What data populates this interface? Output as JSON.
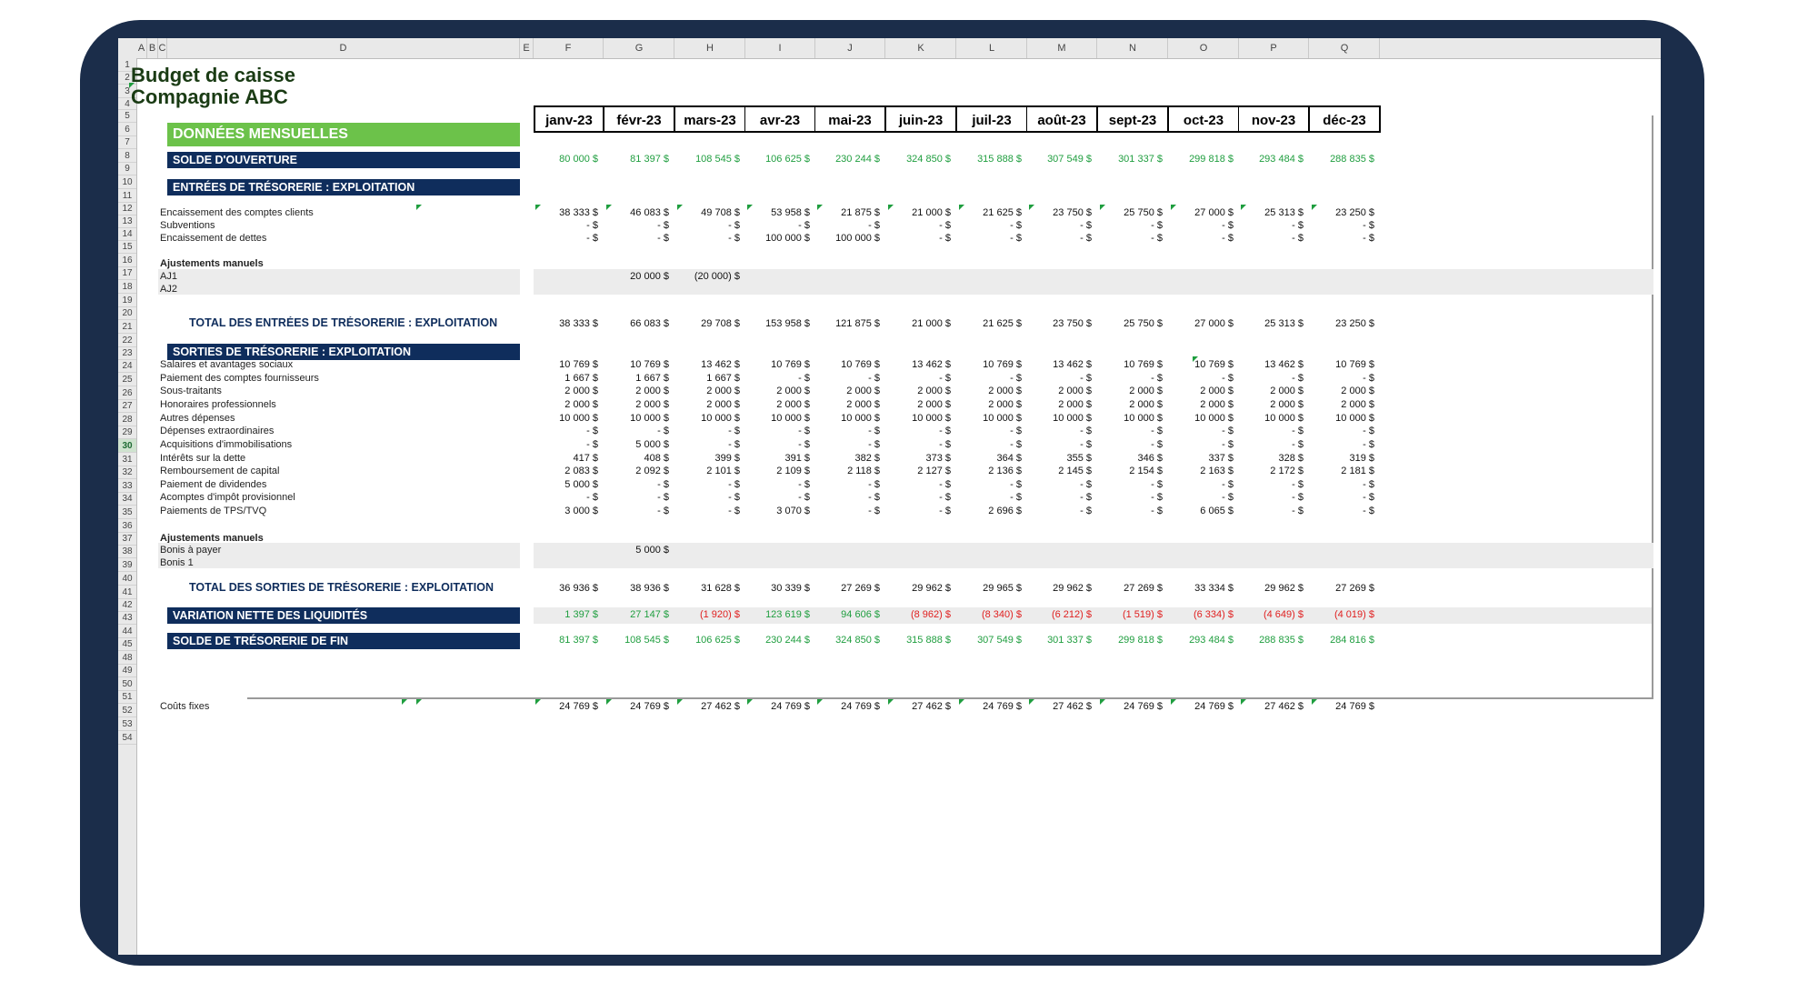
{
  "columns": [
    "A",
    "B",
    "C",
    "D",
    "E",
    "F",
    "G",
    "H",
    "I",
    "J",
    "K",
    "L",
    "M",
    "N",
    "O",
    "P",
    "Q"
  ],
  "row_numbers": [
    "1",
    "2",
    "3",
    "4",
    "5",
    "6",
    "7",
    "8",
    "9",
    "10",
    "11",
    "12",
    "13",
    "14",
    "15",
    "16",
    "17",
    "18",
    "19",
    "20",
    "21",
    "22",
    "23",
    "24",
    "25",
    "26",
    "27",
    "28",
    "29",
    "30",
    "31",
    "32",
    "33",
    "34",
    "35",
    "36",
    "37",
    "38",
    "39",
    "40",
    "41",
    "42",
    "43",
    "44",
    "45",
    "48",
    "49",
    "50",
    "51",
    "52",
    "53",
    "54"
  ],
  "selected_row": "30",
  "title1": "Budget de caisse",
  "title2": "Compagnie ABC",
  "months": [
    "janv-23",
    "févr-23",
    "mars-23",
    "avr-23",
    "mai-23",
    "juin-23",
    "juil-23",
    "août-23",
    "sept-23",
    "oct-23",
    "nov-23",
    "déc-23"
  ],
  "section_monthly": "DONNÉES MENSUELLES",
  "opening": {
    "label": "SOLDE D'OUVERTURE",
    "values": [
      "80 000 $",
      "81 397 $",
      "108 545 $",
      "106 625 $",
      "230 244 $",
      "324 850 $",
      "315 888 $",
      "307 549 $",
      "301 337 $",
      "299 818 $",
      "293 484 $",
      "288 835 $"
    ]
  },
  "inflows_header": "ENTRÉES DE TRÉSORERIE : EXPLOITATION",
  "inflows": [
    {
      "label": "Encaissement des comptes clients",
      "values": [
        "38 333 $",
        "46 083 $",
        "49 708 $",
        "53 958 $",
        "21 875 $",
        "21 000 $",
        "21 625 $",
        "23 750 $",
        "25 750 $",
        "27 000 $",
        "25 313 $",
        "23 250 $"
      ]
    },
    {
      "label": "Subventions",
      "values": [
        "- $",
        "- $",
        "- $",
        "- $",
        "- $",
        "- $",
        "- $",
        "- $",
        "- $",
        "- $",
        "- $",
        "- $"
      ]
    },
    {
      "label": "Encaissement de dettes",
      "values": [
        "- $",
        "- $",
        "- $",
        "100 000 $",
        "100 000 $",
        "- $",
        "- $",
        "- $",
        "- $",
        "- $",
        "- $",
        "- $"
      ]
    }
  ],
  "adjust_header": "Ajustements manuels",
  "adj_in": [
    {
      "label": "AJ1",
      "values": [
        "",
        "20 000 $",
        "(20 000) $",
        "",
        "",
        "",
        "",
        "",
        "",
        "",
        "",
        ""
      ]
    },
    {
      "label": "AJ2",
      "values": [
        "",
        "",
        "",
        "",
        "",
        "",
        "",
        "",
        "",
        "",
        "",
        ""
      ]
    }
  ],
  "total_in": {
    "label": "TOTAL DES ENTRÉES DE TRÉSORERIE : EXPLOITATION",
    "values": [
      "38 333 $",
      "66 083 $",
      "29 708 $",
      "153 958 $",
      "121 875 $",
      "21 000 $",
      "21 625 $",
      "23 750 $",
      "25 750 $",
      "27 000 $",
      "25 313 $",
      "23 250 $"
    ]
  },
  "outflows_header": "SORTIES DE TRÉSORERIE : EXPLOITATION",
  "outflows": [
    {
      "label": "Salaires et avantages sociaux",
      "values": [
        "10 769 $",
        "10 769 $",
        "13 462 $",
        "10 769 $",
        "10 769 $",
        "13 462 $",
        "10 769 $",
        "13 462 $",
        "10 769 $",
        "10 769 $",
        "13 462 $",
        "10 769 $"
      ]
    },
    {
      "label": "Paiement des comptes fournisseurs",
      "values": [
        "1 667 $",
        "1 667 $",
        "1 667 $",
        "- $",
        "- $",
        "- $",
        "- $",
        "- $",
        "- $",
        "- $",
        "- $",
        "- $"
      ]
    },
    {
      "label": "Sous-traitants",
      "values": [
        "2 000 $",
        "2 000 $",
        "2 000 $",
        "2 000 $",
        "2 000 $",
        "2 000 $",
        "2 000 $",
        "2 000 $",
        "2 000 $",
        "2 000 $",
        "2 000 $",
        "2 000 $"
      ]
    },
    {
      "label": "Honoraires professionnels",
      "values": [
        "2 000 $",
        "2 000 $",
        "2 000 $",
        "2 000 $",
        "2 000 $",
        "2 000 $",
        "2 000 $",
        "2 000 $",
        "2 000 $",
        "2 000 $",
        "2 000 $",
        "2 000 $"
      ]
    },
    {
      "label": "Autres dépenses",
      "values": [
        "10 000 $",
        "10 000 $",
        "10 000 $",
        "10 000 $",
        "10 000 $",
        "10 000 $",
        "10 000 $",
        "10 000 $",
        "10 000 $",
        "10 000 $",
        "10 000 $",
        "10 000 $"
      ]
    },
    {
      "label": "Dépenses extraordinaires",
      "values": [
        "- $",
        "- $",
        "- $",
        "- $",
        "- $",
        "- $",
        "- $",
        "- $",
        "- $",
        "- $",
        "- $",
        "- $"
      ]
    },
    {
      "label": "Acquisitions d'immobilisations",
      "values": [
        "- $",
        "5 000 $",
        "- $",
        "- $",
        "- $",
        "- $",
        "- $",
        "- $",
        "- $",
        "- $",
        "- $",
        "- $"
      ]
    },
    {
      "label": "Intérêts sur la dette",
      "values": [
        "417 $",
        "408 $",
        "399 $",
        "391 $",
        "382 $",
        "373 $",
        "364 $",
        "355 $",
        "346 $",
        "337 $",
        "328 $",
        "319 $"
      ]
    },
    {
      "label": "Remboursement de capital",
      "values": [
        "2 083 $",
        "2 092 $",
        "2 101 $",
        "2 109 $",
        "2 118 $",
        "2 127 $",
        "2 136 $",
        "2 145 $",
        "2 154 $",
        "2 163 $",
        "2 172 $",
        "2 181 $"
      ]
    },
    {
      "label": "Paiement de dividendes",
      "values": [
        "5 000 $",
        "- $",
        "- $",
        "- $",
        "- $",
        "- $",
        "- $",
        "- $",
        "- $",
        "- $",
        "- $",
        "- $"
      ]
    },
    {
      "label": "Acomptes d'impôt provisionnel",
      "values": [
        "- $",
        "- $",
        "- $",
        "- $",
        "- $",
        "- $",
        "- $",
        "- $",
        "- $",
        "- $",
        "- $",
        "- $"
      ]
    },
    {
      "label": "Paiements de TPS/TVQ",
      "values": [
        "3 000 $",
        "- $",
        "- $",
        "3 070 $",
        "- $",
        "- $",
        "2 696 $",
        "- $",
        "- $",
        "6 065 $",
        "- $",
        "- $"
      ]
    }
  ],
  "adj_out": [
    {
      "label": "Bonis à payer",
      "values": [
        "",
        "5 000 $",
        "",
        "",
        "",
        "",
        "",
        "",
        "",
        "",
        "",
        ""
      ]
    },
    {
      "label": "Bonis 1",
      "values": [
        "",
        "",
        "",
        "",
        "",
        "",
        "",
        "",
        "",
        "",
        "",
        ""
      ]
    }
  ],
  "total_out": {
    "label": "TOTAL DES SORTIES DE TRÉSORERIE : EXPLOITATION",
    "values": [
      "36 936 $",
      "38 936 $",
      "31 628 $",
      "30 339 $",
      "27 269 $",
      "29 962 $",
      "29 965 $",
      "29 962 $",
      "27 269 $",
      "33 334 $",
      "29 962 $",
      "27 269 $"
    ]
  },
  "net": {
    "label": "VARIATION NETTE DES LIQUIDITÉS",
    "values": [
      "1 397 $",
      "27 147 $",
      "(1 920) $",
      "123 619 $",
      "94 606 $",
      "(8 962) $",
      "(8 340) $",
      "(6 212) $",
      "(1 519) $",
      "(6 334) $",
      "(4 649) $",
      "(4 019) $"
    ]
  },
  "closing": {
    "label": "SOLDE DE TRÉSORERIE DE FIN",
    "values": [
      "81 397 $",
      "108 545 $",
      "106 625 $",
      "230 244 $",
      "324 850 $",
      "315 888 $",
      "307 549 $",
      "301 337 $",
      "299 818 $",
      "293 484 $",
      "288 835 $",
      "284 816 $"
    ]
  },
  "fixed": {
    "label": "Coûts fixes",
    "values": [
      "24 769 $",
      "24 769 $",
      "27 462 $",
      "24 769 $",
      "24 769 $",
      "27 462 $",
      "24 769 $",
      "27 462 $",
      "24 769 $",
      "24 769 $",
      "27 462 $",
      "24 769 $"
    ]
  },
  "colors": {
    "navy": "#0f2d5c",
    "green_band": "#6cc24a",
    "positive": "#1f9e3f",
    "negative": "#e02020",
    "frame": "#1b2d4a"
  }
}
